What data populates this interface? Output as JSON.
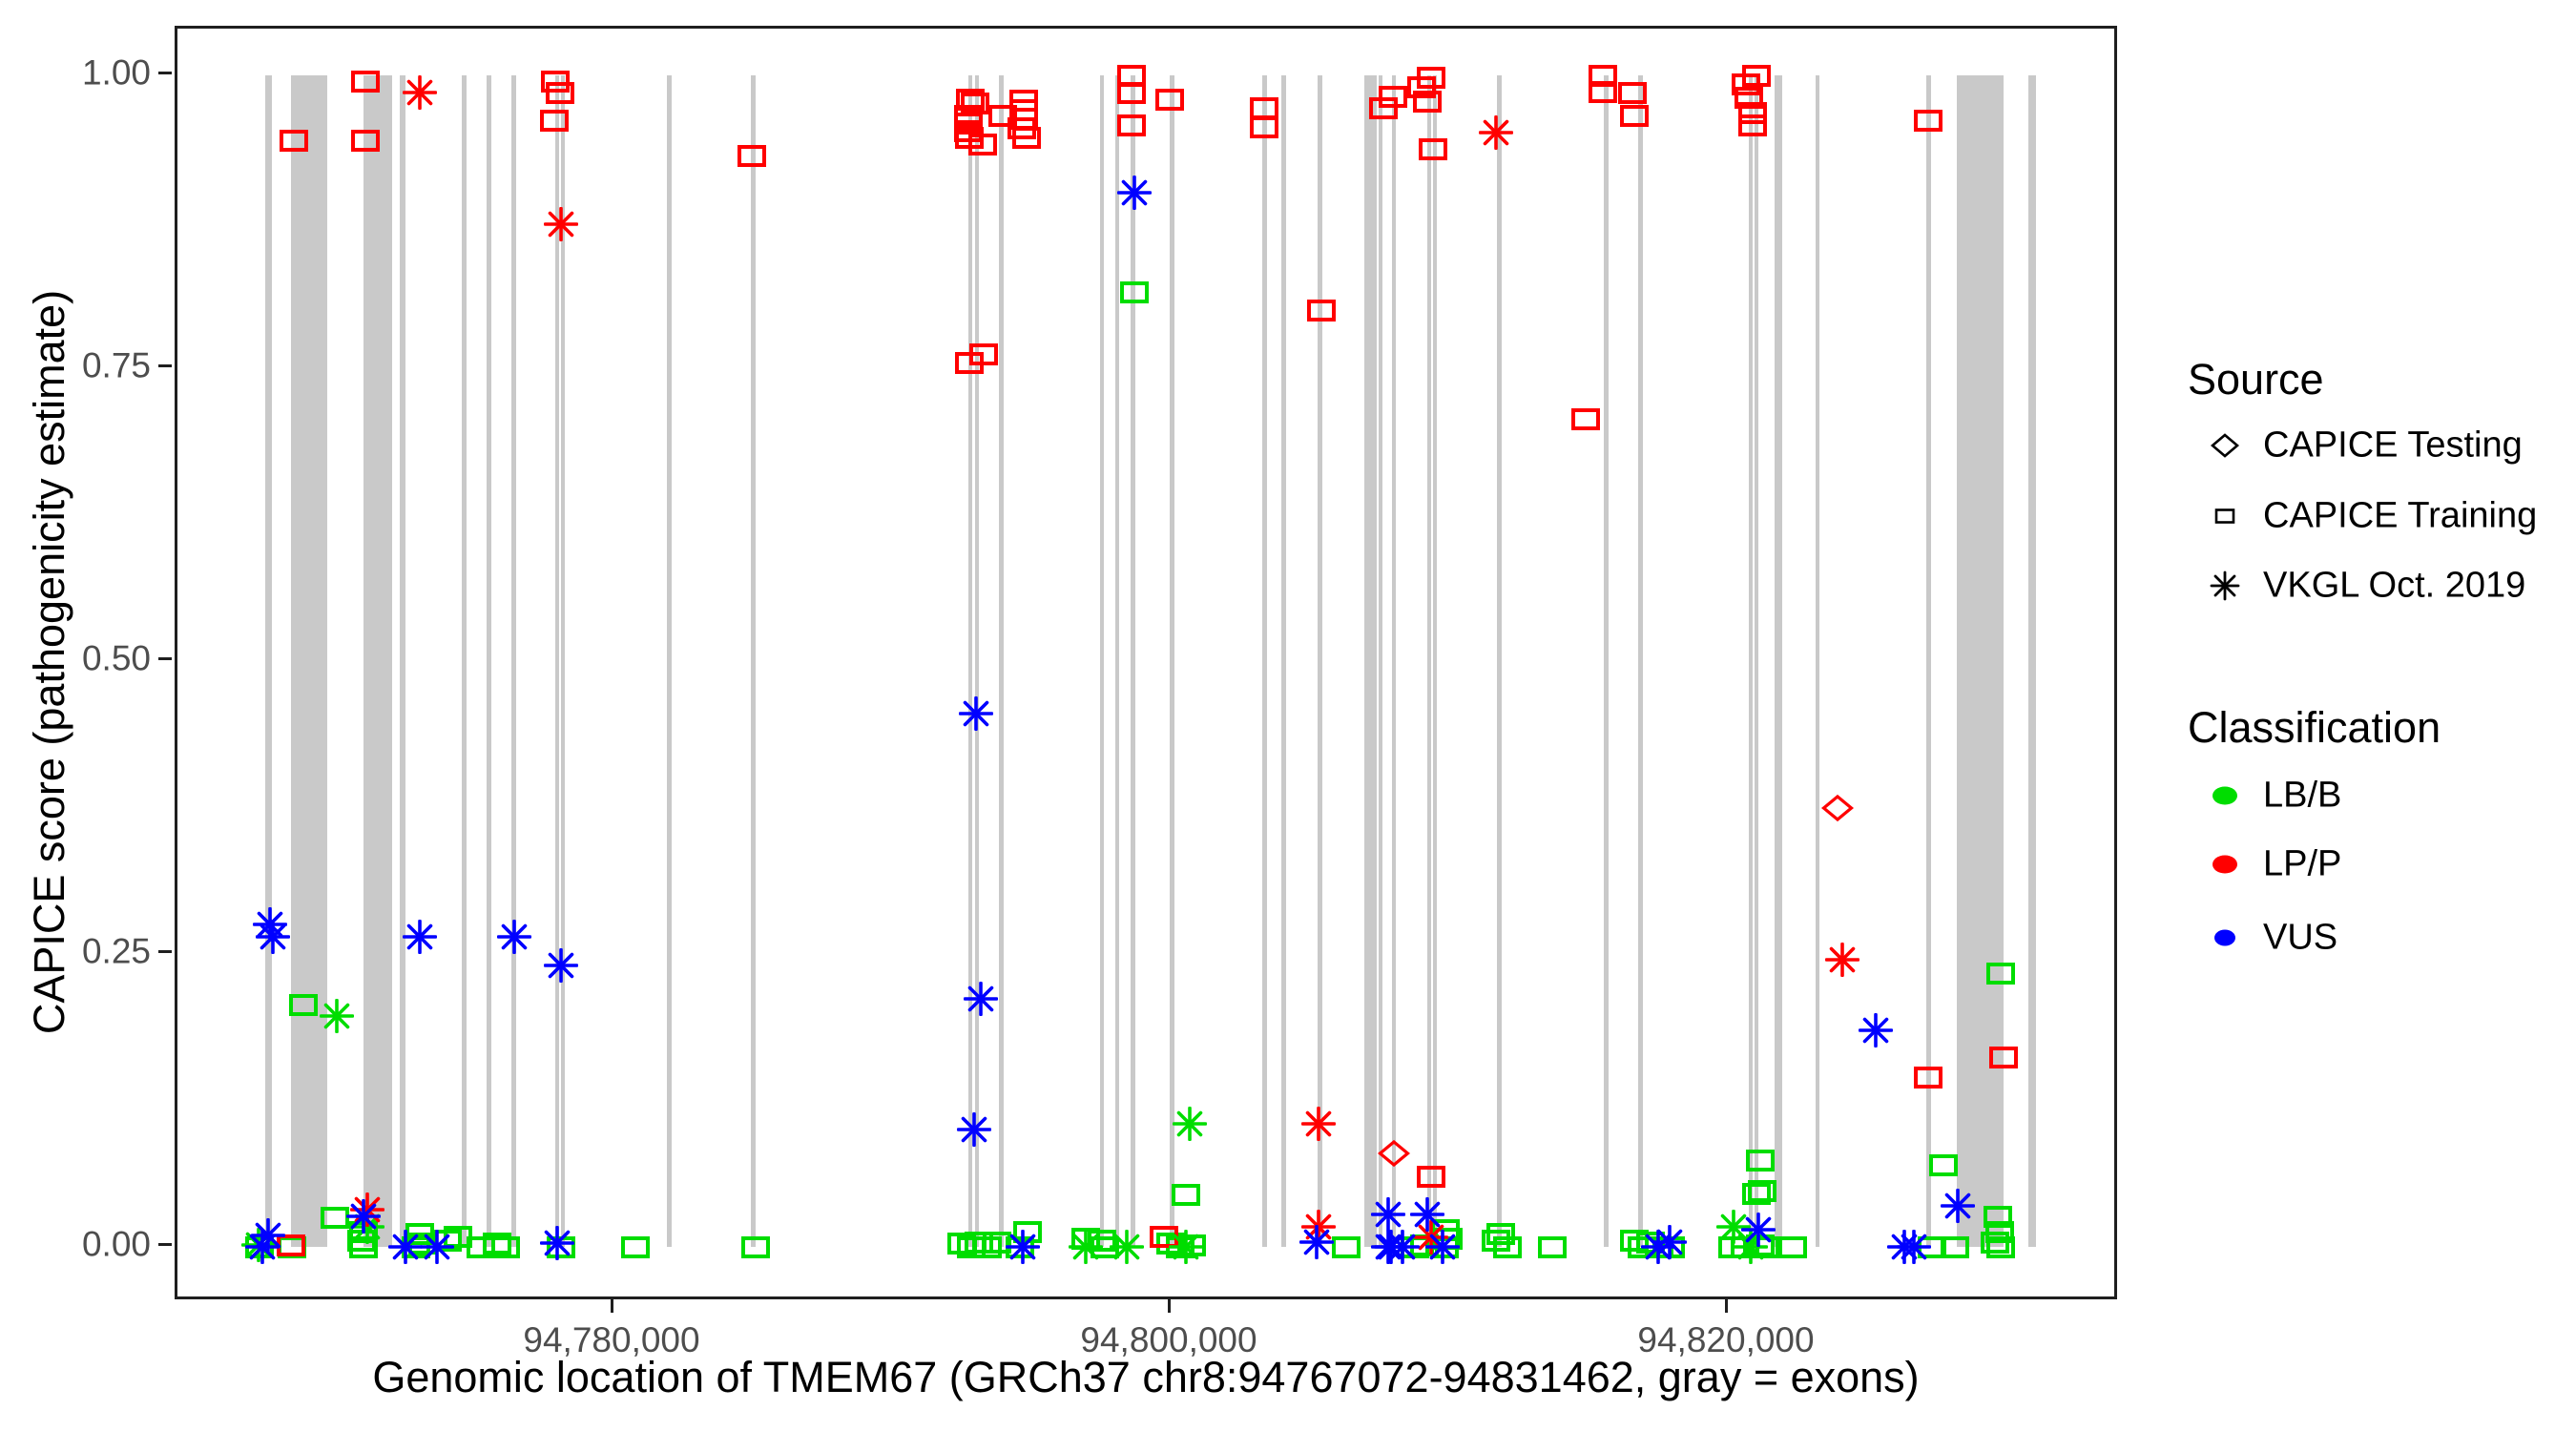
{
  "chart_data": {
    "type": "scatter",
    "title": "",
    "xlabel": "Genomic location of TMEM67 (GRCh37 chr8:94767072-94831462, gray = exons)",
    "ylabel": "CAPICE score (pathogenicity estimate)",
    "gene": {
      "name": "TMEM67",
      "assembly": "GRCh37",
      "chrom": "chr8",
      "start": 94767072,
      "end": 94831462
    },
    "grid": false,
    "legend_position": "right",
    "xlim": [
      94764300,
      94834100
    ],
    "ylim": [
      0,
      1
    ],
    "x_ticks": [
      {
        "value": 94780000,
        "label": "94,780,000"
      },
      {
        "value": 94800000,
        "label": "94,800,000"
      },
      {
        "value": 94820000,
        "label": "94,820,000"
      }
    ],
    "y_ticks": [
      {
        "value": 0.0,
        "label": "0.00"
      },
      {
        "value": 0.25,
        "label": "0.25"
      },
      {
        "value": 0.5,
        "label": "0.50"
      },
      {
        "value": 0.75,
        "label": "0.75"
      },
      {
        "value": 1.0,
        "label": "1.00"
      }
    ],
    "exon_color": "#c9c9c9",
    "exons_note": "gray = exons",
    "exons": [
      [
        94767465,
        94767705
      ],
      [
        94768390,
        94769692
      ],
      [
        94770993,
        94772021
      ],
      [
        94772294,
        94772500
      ],
      [
        94774520,
        94774691
      ],
      [
        94775411,
        94775582
      ],
      [
        94776301,
        94776472
      ],
      [
        94777877,
        94778014
      ],
      [
        94778082,
        94778219
      ],
      [
        94781884,
        94782055
      ],
      [
        94784898,
        94785069
      ],
      [
        94792707,
        94792844
      ],
      [
        94792947,
        94793084
      ],
      [
        94793803,
        94793974
      ],
      [
        94797434,
        94797571
      ],
      [
        94797982,
        94798119
      ],
      [
        94798530,
        94798701
      ],
      [
        94799934,
        94800105
      ],
      [
        94803256,
        94803427
      ],
      [
        94803941,
        94804112
      ],
      [
        94805243,
        94805414
      ],
      [
        94806921,
        94807366
      ],
      [
        94807435,
        94807572
      ],
      [
        94807914,
        94808051
      ],
      [
        94809182,
        94809319
      ],
      [
        94809387,
        94809524
      ],
      [
        94811682,
        94811853
      ],
      [
        94815518,
        94815689
      ],
      [
        94816751,
        94816922
      ],
      [
        94820724,
        94820861
      ],
      [
        94820929,
        94821066
      ],
      [
        94821648,
        94821922
      ],
      [
        94823121,
        94823258
      ],
      [
        94827094,
        94827265
      ],
      [
        94828190,
        94829868
      ],
      [
        94830759,
        94831033
      ]
    ],
    "classification_colors": {
      "LB/B": "#00dd00",
      "LP/P": "#ff0000",
      "VUS": "#0000ff"
    },
    "series": [
      {
        "name": "CAPICE Testing",
        "shape": "diamond",
        "points": {
          "LP/P": [
            [
              94807983,
              0.08
            ],
            [
              94823909,
              0.375
            ]
          ]
        }
      },
      {
        "name": "CAPICE Training",
        "shape": "square",
        "points": {
          "LB/B": [
            [
              94767258,
              0.0
            ],
            [
              94768424,
              0.0
            ],
            [
              94768835,
              0.207
            ],
            [
              94769965,
              0.025
            ],
            [
              94770992,
              0.013
            ],
            [
              94770924,
              0.006
            ],
            [
              94770992,
              0.0
            ],
            [
              94772876,
              0.0
            ],
            [
              94773013,
              0.011
            ],
            [
              94773116,
              0.003
            ],
            [
              94774007,
              0.006
            ],
            [
              94774383,
              0.009
            ],
            [
              94775205,
              0.0
            ],
            [
              94775788,
              0.003
            ],
            [
              94776096,
              0.0
            ],
            [
              94778082,
              0.0
            ],
            [
              94780754,
              0.0
            ],
            [
              94785069,
              0.0
            ],
            [
              94792470,
              0.003
            ],
            [
              94792810,
              0.0
            ],
            [
              94793084,
              0.004
            ],
            [
              94793392,
              0.0
            ],
            [
              94793734,
              0.004
            ],
            [
              94794556,
              0.0
            ],
            [
              94794830,
              0.013
            ],
            [
              94796920,
              0.007
            ],
            [
              94797502,
              0.006
            ],
            [
              94797605,
              0.0
            ],
            [
              94798666,
              0.815
            ],
            [
              94799968,
              0.003
            ],
            [
              94800311,
              0.0
            ],
            [
              94800722,
              0.002
            ],
            [
              94800516,
              0.045
            ],
            [
              94806270,
              0.0
            ],
            [
              94808736,
              0.0
            ],
            [
              94809078,
              0.002
            ],
            [
              94809832,
              0.015
            ],
            [
              94809935,
              0.007
            ],
            [
              94809798,
              0.0
            ],
            [
              94811647,
              0.006
            ],
            [
              94811819,
              0.011
            ],
            [
              94812058,
              0.0
            ],
            [
              94813668,
              0.0
            ],
            [
              94816614,
              0.006
            ],
            [
              94816888,
              0.0
            ],
            [
              94817196,
              0.004
            ],
            [
              94817504,
              0.0
            ],
            [
              94817915,
              0.0
            ],
            [
              94820141,
              0.0
            ],
            [
              94820586,
              0.0
            ],
            [
              94821134,
              0.074
            ],
            [
              94820997,
              0.046
            ],
            [
              94821203,
              0.048
            ],
            [
              94821134,
              0.002
            ],
            [
              94821306,
              0.0
            ],
            [
              94822299,
              0.0
            ],
            [
              94827299,
              0.0
            ],
            [
              94828121,
              0.0
            ],
            [
              94827710,
              0.07
            ],
            [
              94829663,
              0.026
            ],
            [
              94829731,
              0.013
            ],
            [
              94829560,
              0.004
            ],
            [
              94829765,
              0.0
            ],
            [
              94829765,
              0.234
            ]
          ],
          "LP/P": [
            [
              94768492,
              0.945
            ],
            [
              94768390,
              0.002
            ],
            [
              94771061,
              0.995
            ],
            [
              94771061,
              0.945
            ],
            [
              94777877,
              0.995
            ],
            [
              94778048,
              0.985
            ],
            [
              94777846,
              0.962
            ],
            [
              94784932,
              0.932
            ],
            [
              94792775,
              0.98
            ],
            [
              94792946,
              0.976
            ],
            [
              94792707,
              0.966
            ],
            [
              94792707,
              0.959
            ],
            [
              94792707,
              0.953
            ],
            [
              94792741,
              0.947
            ],
            [
              94793221,
              0.941
            ],
            [
              94793940,
              0.966
            ],
            [
              94794693,
              0.979
            ],
            [
              94794693,
              0.971
            ],
            [
              94794693,
              0.963
            ],
            [
              94794625,
              0.955
            ],
            [
              94794796,
              0.947
            ],
            [
              94792741,
              0.755
            ],
            [
              94793255,
              0.762
            ],
            [
              94798563,
              1.0
            ],
            [
              94798563,
              0.985
            ],
            [
              94798563,
              0.958
            ],
            [
              94799934,
              0.98
            ],
            [
              94799728,
              0.009
            ],
            [
              94803325,
              0.972
            ],
            [
              94803325,
              0.956
            ],
            [
              94805380,
              0.8
            ],
            [
              94807606,
              0.972
            ],
            [
              94807948,
              0.982
            ],
            [
              94808976,
              0.99
            ],
            [
              94809318,
              0.998
            ],
            [
              94809181,
              0.978
            ],
            [
              94809387,
              0.937
            ],
            [
              94809318,
              0.06
            ],
            [
              94814867,
              0.707
            ],
            [
              94815483,
              1.0
            ],
            [
              94815483,
              0.986
            ],
            [
              94816545,
              0.985
            ],
            [
              94816614,
              0.966
            ],
            [
              94820621,
              0.993
            ],
            [
              94820997,
              1.0
            ],
            [
              94820723,
              0.981
            ],
            [
              94820860,
              0.968
            ],
            [
              94820860,
              0.958
            ],
            [
              94827162,
              0.962
            ],
            [
              94827162,
              0.145
            ],
            [
              94829868,
              0.162
            ]
          ]
        }
      },
      {
        "name": "VKGL Oct. 2019",
        "shape": "asterisk",
        "points": {
          "LB/B": [
            [
              94767224,
              0.002
            ],
            [
              94770033,
              0.197
            ],
            [
              94771130,
              0.017
            ],
            [
              94796920,
              0.0
            ],
            [
              94798392,
              0.0
            ],
            [
              94800653,
              0.105
            ],
            [
              94800516,
              0.0
            ],
            [
              94820175,
              0.017
            ],
            [
              94820790,
              0.0
            ]
          ],
          "LP/P": [
            [
              94773013,
              0.985
            ],
            [
              94778082,
              0.873
            ],
            [
              94771130,
              0.032
            ],
            [
              94805277,
              0.105
            ],
            [
              94805277,
              0.017
            ],
            [
              94809318,
              0.008
            ],
            [
              94811647,
              0.951
            ],
            [
              94824080,
              0.245
            ]
          ],
          "VUS": [
            [
              94767567,
              0.01
            ],
            [
              94767362,
              0.0
            ],
            [
              94767636,
              0.275
            ],
            [
              94767738,
              0.265
            ],
            [
              94770992,
              0.026
            ],
            [
              94772500,
              0.0
            ],
            [
              94773013,
              0.265
            ],
            [
              94773630,
              0.0
            ],
            [
              94776404,
              0.265
            ],
            [
              94778082,
              0.24
            ],
            [
              94777945,
              0.003
            ],
            [
              94792981,
              0.455
            ],
            [
              94793152,
              0.212
            ],
            [
              94792913,
              0.1
            ],
            [
              94794660,
              0.0
            ],
            [
              94798666,
              0.9
            ],
            [
              94805208,
              0.004
            ],
            [
              94807777,
              0.028
            ],
            [
              94807777,
              0.0
            ],
            [
              94807880,
              0.0
            ],
            [
              94808291,
              0.0
            ],
            [
              94809181,
              0.028
            ],
            [
              94809729,
              0.0
            ],
            [
              94817470,
              0.0
            ],
            [
              94817881,
              0.004
            ],
            [
              94821065,
              0.015
            ],
            [
              94825279,
              0.185
            ],
            [
              94826306,
              0.0
            ],
            [
              94826649,
              0.0
            ],
            [
              94828224,
              0.035
            ]
          ]
        }
      }
    ]
  },
  "legend": {
    "source_title": "Source",
    "source_items": [
      {
        "label": "CAPICE Testing",
        "shape": "diamond"
      },
      {
        "label": "CAPICE Training",
        "shape": "square"
      },
      {
        "label": "VKGL Oct. 2019",
        "shape": "asterisk"
      }
    ],
    "classification_title": "Classification",
    "classification_items": [
      {
        "label": "LB/B",
        "color": "#00dd00"
      },
      {
        "label": "LP/P",
        "color": "#ff0000"
      },
      {
        "label": "VUS",
        "color": "#0000ff"
      }
    ]
  }
}
